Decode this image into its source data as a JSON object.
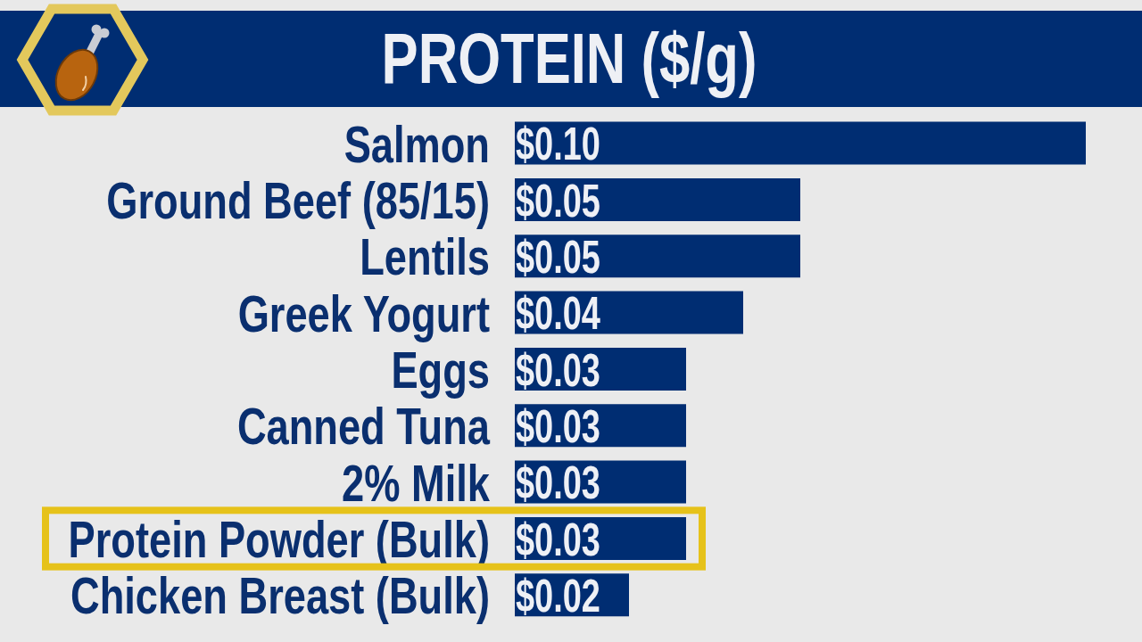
{
  "chart_data": {
    "type": "bar",
    "orientation": "horizontal",
    "title": "PROTEIN ($/g)",
    "categories": [
      "Salmon",
      "Ground Beef (85/15)",
      "Lentils",
      "Greek Yogurt",
      "Eggs",
      "Canned Tuna",
      "2% Milk",
      "Protein Powder (Bulk)",
      "Chicken Breast (Bulk)"
    ],
    "values": [
      0.1,
      0.05,
      0.05,
      0.04,
      0.03,
      0.03,
      0.03,
      0.03,
      0.02
    ],
    "color": "#002d72",
    "value_labels": [
      "$0.10",
      "$0.05",
      "$0.05",
      "$0.04",
      "$0.03",
      "$0.03",
      "$0.03",
      "$0.03",
      "$0.02"
    ],
    "xlim": [
      0,
      0.1
    ],
    "tick_labels": "y"
  }
}
